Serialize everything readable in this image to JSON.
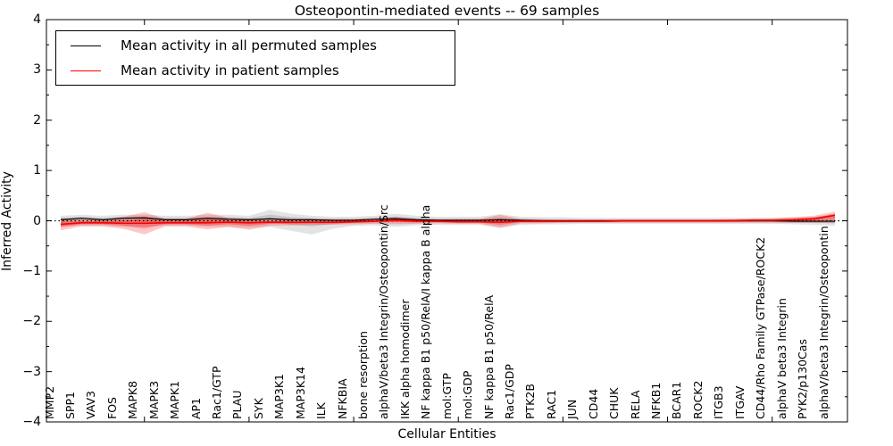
{
  "title": "Osteopontin-mediated events -- 69 samples",
  "chart_data": {
    "type": "line",
    "title": "Osteopontin-mediated events -- 69 samples",
    "xlabel": "Cellular Entities",
    "ylabel": "Inferred Activity",
    "ylim": [
      -4,
      4
    ],
    "yticks": [
      4,
      3,
      2,
      1,
      0,
      -1,
      -2,
      -3,
      -4
    ],
    "grid": false,
    "legend_position": "upper left",
    "zero_line": {
      "style": "dotted",
      "color": "#000000",
      "y": 0
    },
    "categories": [
      "MMP2",
      "SPP1",
      "VAV3",
      "FOS",
      "MAPK8",
      "MAPK3",
      "MAPK1",
      "AP1",
      "Rac1/GTP",
      "PLAU",
      "SYK",
      "MAP3K1",
      "MAP3K14",
      "ILK",
      "NFKBIA",
      "bone resorption",
      "alphaV/beta3 Integrin/Osteopontin/Src",
      "IKK alpha homodimer",
      "NF kappa B1 p50/RelA/I kappa B alpha",
      "mol:GTP",
      "mol:GDP",
      "NF kappa B1 p50/RelA",
      "Rac1/GDP",
      "PTK2B",
      "RAC1",
      "JUN",
      "CD44",
      "CHUK",
      "RELA",
      "NFKB1",
      "BCAR1",
      "ROCK2",
      "ITGB3",
      "ITGAV",
      "CD44/Rho Family GTPase/ROCK2",
      "alphaV beta3 Integrin",
      "PYK2/p130Cas",
      "alphaV/beta3 Integrin/Osteopontin"
    ],
    "series": [
      {
        "name": "Mean activity in all permuted samples",
        "color": "#000000",
        "band_color": "#808080",
        "values": [
          0.02,
          0.05,
          0.02,
          0.05,
          0.06,
          0.02,
          0.02,
          0.05,
          0.03,
          0.02,
          0.04,
          0.02,
          0.02,
          0.01,
          0.01,
          0.03,
          0.04,
          0.02,
          0.01,
          0.01,
          0.01,
          0.02,
          0.01,
          0.0,
          0.0,
          0.0,
          0.0,
          0.0,
          0.0,
          0.0,
          0.0,
          0.0,
          0.0,
          0.0,
          0.0,
          -0.01,
          -0.01,
          -0.01
        ],
        "band_upper": [
          0.1,
          0.12,
          0.1,
          0.12,
          0.12,
          0.1,
          0.1,
          0.12,
          0.12,
          0.1,
          0.22,
          0.14,
          0.1,
          0.08,
          0.08,
          0.1,
          0.14,
          0.1,
          0.08,
          0.08,
          0.08,
          0.13,
          0.08,
          0.07,
          0.07,
          0.06,
          0.06,
          0.06,
          0.06,
          0.06,
          0.06,
          0.06,
          0.06,
          0.06,
          0.06,
          0.07,
          0.08,
          0.1
        ],
        "band_lower": [
          -0.12,
          -0.1,
          -0.1,
          -0.12,
          -0.12,
          -0.1,
          -0.1,
          -0.12,
          -0.12,
          -0.14,
          -0.12,
          -0.2,
          -0.27,
          -0.16,
          -0.1,
          -0.09,
          -0.12,
          -0.09,
          -0.08,
          -0.08,
          -0.08,
          -0.13,
          -0.08,
          -0.07,
          -0.07,
          -0.06,
          -0.06,
          -0.06,
          -0.06,
          -0.06,
          -0.06,
          -0.06,
          -0.06,
          -0.06,
          -0.06,
          -0.07,
          -0.08,
          -0.1
        ]
      },
      {
        "name": "Mean activity in patient samples",
        "color": "#ff0000",
        "band_color": "#ff0000",
        "values": [
          -0.07,
          -0.04,
          -0.04,
          -0.05,
          -0.05,
          -0.04,
          -0.04,
          -0.04,
          -0.03,
          -0.04,
          -0.03,
          -0.03,
          -0.03,
          -0.03,
          -0.02,
          -0.01,
          0.01,
          -0.01,
          -0.01,
          -0.02,
          -0.02,
          -0.03,
          -0.01,
          -0.01,
          -0.01,
          -0.01,
          -0.01,
          0.0,
          0.0,
          0.0,
          0.0,
          0.0,
          0.0,
          0.01,
          0.01,
          0.02,
          0.04,
          0.11
        ],
        "band_upper": [
          0.05,
          0.03,
          0.03,
          0.08,
          0.17,
          0.04,
          0.04,
          0.16,
          0.06,
          0.04,
          0.04,
          0.03,
          0.03,
          0.03,
          0.03,
          0.04,
          0.08,
          0.04,
          0.03,
          0.03,
          0.03,
          0.12,
          0.03,
          0.03,
          0.02,
          0.02,
          0.02,
          0.02,
          0.02,
          0.02,
          0.02,
          0.02,
          0.03,
          0.04,
          0.05,
          0.07,
          0.1,
          0.18
        ],
        "band_lower": [
          -0.19,
          -0.11,
          -0.11,
          -0.16,
          -0.27,
          -0.11,
          -0.11,
          -0.17,
          -0.12,
          -0.18,
          -0.1,
          -0.09,
          -0.08,
          -0.08,
          -0.07,
          -0.06,
          -0.07,
          -0.06,
          -0.05,
          -0.06,
          -0.06,
          -0.14,
          -0.05,
          -0.05,
          -0.04,
          -0.04,
          -0.04,
          -0.04,
          -0.04,
          -0.04,
          -0.04,
          -0.04,
          -0.04,
          -0.04,
          -0.04,
          -0.04,
          -0.04,
          -0.04
        ]
      }
    ]
  }
}
